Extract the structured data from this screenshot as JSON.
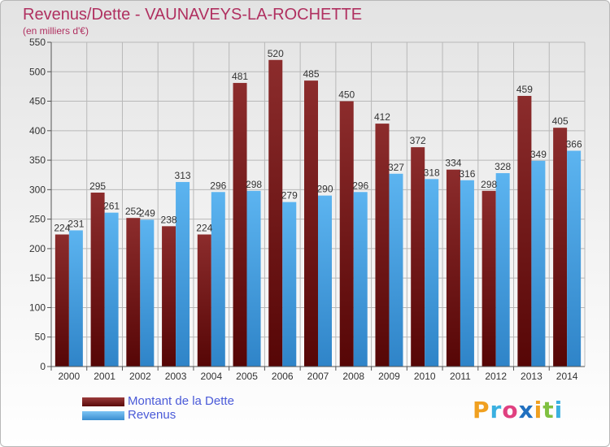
{
  "header": {
    "title": "Revenus/Dette - VAUNAVEYS-LA-ROCHETTE",
    "subtitle": "(en milliers d'€)"
  },
  "legend": {
    "debt_label": "Montant de la Dette",
    "revenue_label": "Revenus"
  },
  "logo": {
    "letters": [
      "P",
      "r",
      "o",
      "x",
      "i",
      "t",
      "i"
    ],
    "colors": [
      "#f0a020",
      "#3ab0e0",
      "#e04080",
      "#2070c0",
      "#f0a020",
      "#80c040",
      "#3ab0e0"
    ]
  },
  "colors": {
    "debt": "#7a1a1a",
    "revenue": "#4aa6e6",
    "grid": "#b8b8b8",
    "axis_text": "#333333"
  },
  "chart_data": {
    "type": "bar",
    "categories": [
      "2000",
      "2001",
      "2002",
      "2003",
      "2004",
      "2005",
      "2006",
      "2007",
      "2008",
      "2009",
      "2010",
      "2011",
      "2012",
      "2013",
      "2014"
    ],
    "series": [
      {
        "name": "Montant de la Dette",
        "values": [
          224,
          295,
          252,
          238,
          224,
          481,
          520,
          485,
          450,
          412,
          372,
          334,
          298,
          459,
          405
        ]
      },
      {
        "name": "Revenus",
        "values": [
          231,
          261,
          249,
          313,
          296,
          298,
          279,
          290,
          296,
          327,
          318,
          316,
          328,
          349,
          366
        ]
      }
    ],
    "ylim": [
      0,
      550
    ],
    "yticks": [
      0,
      50,
      100,
      150,
      200,
      250,
      300,
      350,
      400,
      450,
      500,
      550
    ],
    "grid": true,
    "legend_position": "bottom-left"
  }
}
